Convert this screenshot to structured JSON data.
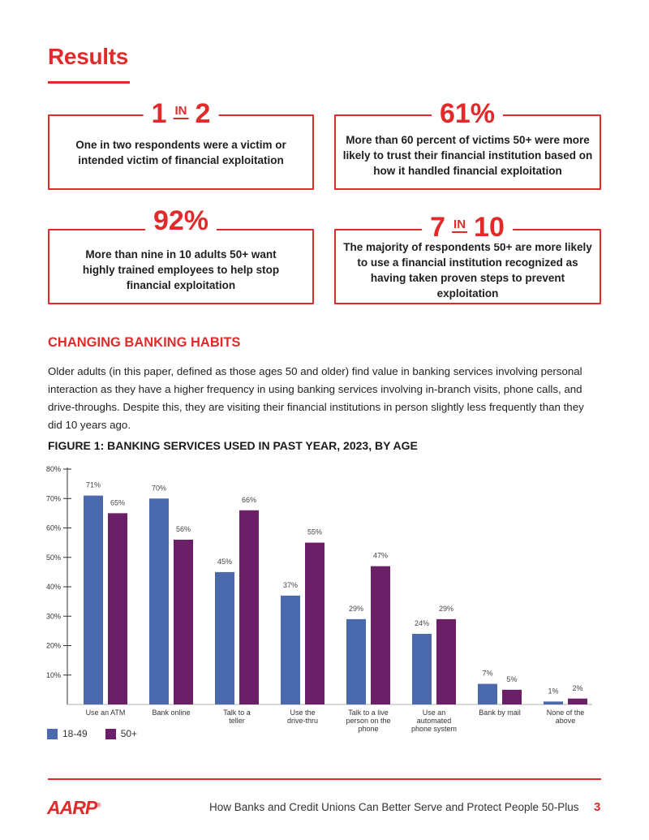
{
  "results_title": "Results",
  "stats": [
    {
      "head_a": "1",
      "head_in": "IN",
      "head_b": "2",
      "text": "One in two respondents were a victim or intended victim of financial exploitation"
    },
    {
      "head_a": "61%",
      "text": "More than 60 percent of victims 50+ were more likely to trust their financial institution based on how it handled financial exploitation"
    },
    {
      "head_a": "92%",
      "text": "More than nine in 10 adults 50+ want highly trained employees to help stop financial exploitation"
    },
    {
      "head_a": "7",
      "head_in": "IN",
      "head_b": "10",
      "text": "The majority of respondents 50+ are more likely to use a financial institution recognized as having taken proven steps to prevent exploitation"
    }
  ],
  "section_heading": "CHANGING BANKING HABITS",
  "body_text": "Older adults (in this paper, defined as those ages 50 and older) find value in banking services involving personal interaction as they have a higher frequency in using banking services involving in-branch visits, phone calls, and drive-throughs. Despite this, they are visiting their financial institutions in person slightly less frequently than they did 10 years ago.",
  "figure_title": "FIGURE 1: BANKING SERVICES USED IN PAST YEAR, 2023, BY AGE",
  "chart_data": {
    "type": "bar",
    "categories": [
      [
        "Use an ATM"
      ],
      [
        "Bank online"
      ],
      [
        "Talk to a",
        "teller"
      ],
      [
        "Use the",
        "drive-thru"
      ],
      [
        "Talk to a live",
        "person on the",
        "phone"
      ],
      [
        "Use an",
        "automated",
        "phone system"
      ],
      [
        "Bank by mail"
      ],
      [
        "None of the",
        "above"
      ]
    ],
    "series": [
      {
        "name": "18-49",
        "color": "#4a6aad",
        "values": [
          71,
          70,
          45,
          37,
          29,
          24,
          7,
          1
        ]
      },
      {
        "name": "50+",
        "color": "#6b1f66",
        "values": [
          65,
          56,
          66,
          55,
          47,
          29,
          5,
          2
        ]
      }
    ],
    "y_ticks": [
      10,
      20,
      30,
      40,
      50,
      60,
      70,
      80
    ],
    "ylim": [
      0,
      80
    ],
    "value_suffix": "%",
    "legend_position": "bottom-left"
  },
  "footer": {
    "logo": "AARP",
    "logo_mark": "®",
    "text": "How Banks and Credit Unions Can Better Serve and Protect People 50-Plus",
    "page": "3"
  }
}
